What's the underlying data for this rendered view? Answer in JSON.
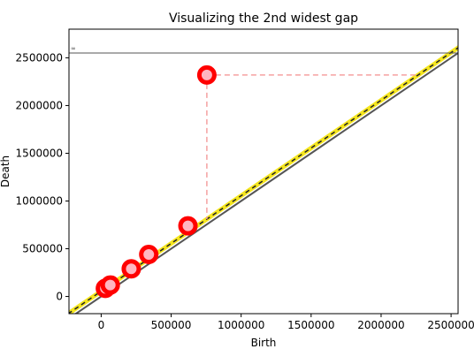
{
  "chart_data": {
    "type": "scatter",
    "title": "Visualizing the 2nd widest gap",
    "xlabel": "Birth",
    "ylabel": "Death",
    "xlim": [
      -230000,
      2550000
    ],
    "ylim": [
      -180000,
      2800000
    ],
    "x_ticks": [
      0,
      500000,
      1000000,
      1500000,
      2000000,
      2500000
    ],
    "y_ticks": [
      0,
      500000,
      1000000,
      1500000,
      2000000,
      2500000
    ],
    "infinity_level": 2550000,
    "infinity_label": "∞",
    "points": [
      {
        "x": 30000,
        "y": 85000
      },
      {
        "x": 65000,
        "y": 120000
      },
      {
        "x": 215000,
        "y": 290000
      },
      {
        "x": 340000,
        "y": 440000
      },
      {
        "x": 620000,
        "y": 740000
      },
      {
        "x": 755000,
        "y": 2320000
      }
    ],
    "highlight_index": 5,
    "colors": {
      "marker_ring": "#ff0000",
      "marker_center": "#ffb6c1",
      "diagonal": "#555555",
      "band": "#f5e61e",
      "band_dash": "#222222",
      "gap_lines": "#f5a0a0",
      "infinity_line": "#555555"
    }
  }
}
